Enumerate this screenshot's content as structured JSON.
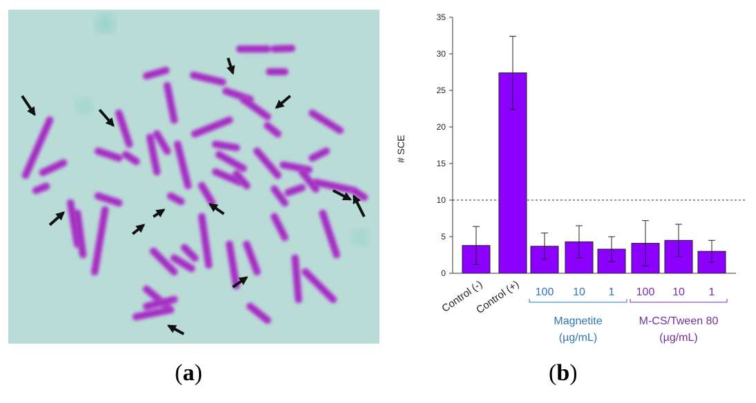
{
  "panels": {
    "a": {
      "label_open": "(",
      "label_letter": "a",
      "label_close": ")"
    },
    "b": {
      "label_open": "(",
      "label_letter": "b",
      "label_close": ")"
    }
  },
  "micrograph": {
    "background_color": "#b9dcd6",
    "chromosome_color": "#b23dd0",
    "arrow_color": "#111111",
    "arrow_count": 12
  },
  "chart_data": {
    "type": "bar",
    "ylabel": "# SCE",
    "ylim": [
      0,
      35
    ],
    "yticks": [
      0,
      5,
      10,
      15,
      20,
      25,
      30,
      35
    ],
    "categories": [
      "Control (-)",
      "Control (+)",
      "100",
      "10",
      "1",
      "100",
      "10",
      "1"
    ],
    "values": [
      3.8,
      27.4,
      3.7,
      4.3,
      3.3,
      4.1,
      4.5,
      3.0
    ],
    "errors": [
      2.6,
      5.0,
      1.8,
      2.2,
      1.7,
      3.1,
      2.2,
      1.5
    ],
    "bar_color": "#8b00ff",
    "reference_line": 10,
    "groups": [
      {
        "label_line1": "Magnetite",
        "label_line2": "(µg/mL)",
        "members": [
          2,
          3,
          4
        ],
        "color": "#2e75b6"
      },
      {
        "label_line1": "M-CS/Tween 80",
        "label_line2": "(µg/mL)",
        "members": [
          5,
          6,
          7
        ],
        "color": "#7030a0"
      }
    ],
    "grid": false
  }
}
